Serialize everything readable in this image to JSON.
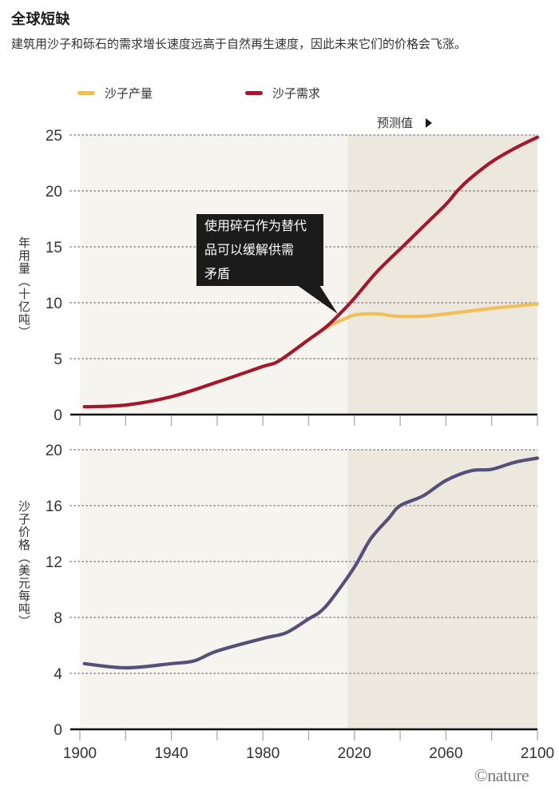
{
  "header": {
    "title": "全球短缺",
    "subtitle": "建筑用沙子和砾石的需求增长速度远高于自然再生速度，因此未来它们的价格会飞涨。"
  },
  "legend": [
    {
      "label": "沙子产量",
      "color": "#f0bf5a"
    },
    {
      "label": "沙子需求",
      "color": "#a3182f"
    }
  ],
  "forecast_label": "预测值",
  "callout_text": "使用碎石作为替代品可以缓解供需矛盾",
  "callout_lines": [
    "使用碎石作为替代",
    "品可以缓解供需",
    "矛盾"
  ],
  "credit": "©nature",
  "colors": {
    "production": "#f0bf5a",
    "demand": "#a3182f",
    "price": "#55507a",
    "bg_historical": "#f5f4ef",
    "bg_forecast": "#ece8de",
    "axis": "#111111",
    "grid": "#888888"
  },
  "chart_data": [
    {
      "type": "line",
      "title": "全球短缺",
      "xlabel": "",
      "ylabel": "年用量（十亿吨）",
      "ylim": [
        0,
        25
      ],
      "yticks": [
        0,
        5,
        10,
        15,
        20,
        25
      ],
      "xlim": [
        1900,
        2100
      ],
      "xticks": [
        1900,
        1920,
        1940,
        1960,
        1980,
        2000,
        2020,
        2040,
        2060,
        2080,
        2100
      ],
      "forecast_start": 2017,
      "grid": "horizontal dotted",
      "legend_position": "top",
      "annotation": {
        "text": "使用碎石作为替代品可以缓解供需矛盾",
        "x": 2014,
        "y": 8.8
      },
      "series": [
        {
          "name": "沙子产量",
          "x": [
            1902,
            1920,
            1940,
            1960,
            1980,
            1987,
            2000,
            2008,
            2015,
            2020,
            2025,
            2031,
            2038,
            2050,
            2060,
            2070,
            2080,
            2090,
            2100
          ],
          "values": [
            0.7,
            0.85,
            1.6,
            2.9,
            4.3,
            4.8,
            6.7,
            7.8,
            8.5,
            8.9,
            9.0,
            9.0,
            8.8,
            8.8,
            9.0,
            9.25,
            9.5,
            9.7,
            9.9
          ]
        },
        {
          "name": "沙子需求",
          "x": [
            1902,
            1920,
            1940,
            1960,
            1980,
            1987,
            2000,
            2008,
            2015,
            2020,
            2030,
            2041,
            2050,
            2060,
            2065,
            2070,
            2080,
            2090,
            2100
          ],
          "values": [
            0.7,
            0.85,
            1.6,
            2.9,
            4.3,
            4.8,
            6.7,
            7.9,
            9.3,
            10.4,
            12.8,
            15.0,
            16.8,
            18.8,
            20.0,
            21.0,
            22.6,
            23.8,
            24.8
          ]
        }
      ]
    },
    {
      "type": "line",
      "title": "",
      "xlabel": "",
      "ylabel": "沙子价格（美元每吨）",
      "ylim": [
        0,
        20
      ],
      "yticks": [
        0,
        4,
        8,
        12,
        16,
        20
      ],
      "xlim": [
        1900,
        2100
      ],
      "xticks": [
        1900,
        1920,
        1940,
        1960,
        1980,
        2000,
        2020,
        2040,
        2060,
        2080,
        2100
      ],
      "xtick_labels": [
        "1900",
        "1940",
        "1980",
        "2020",
        "2060",
        "2100"
      ],
      "forecast_start": 2017,
      "grid": "horizontal dotted",
      "series": [
        {
          "name": "沙子价格",
          "x": [
            1902,
            1920,
            1940,
            1950,
            1960,
            1980,
            1990,
            2000,
            2005,
            2010,
            2020,
            2027,
            2035,
            2040,
            2050,
            2060,
            2071,
            2080,
            2090,
            2100
          ],
          "values": [
            4.7,
            4.4,
            4.7,
            4.9,
            5.6,
            6.5,
            6.9,
            7.9,
            8.4,
            9.3,
            11.6,
            13.6,
            15.1,
            16.0,
            16.7,
            17.8,
            18.5,
            18.6,
            19.1,
            19.4
          ]
        }
      ]
    }
  ]
}
